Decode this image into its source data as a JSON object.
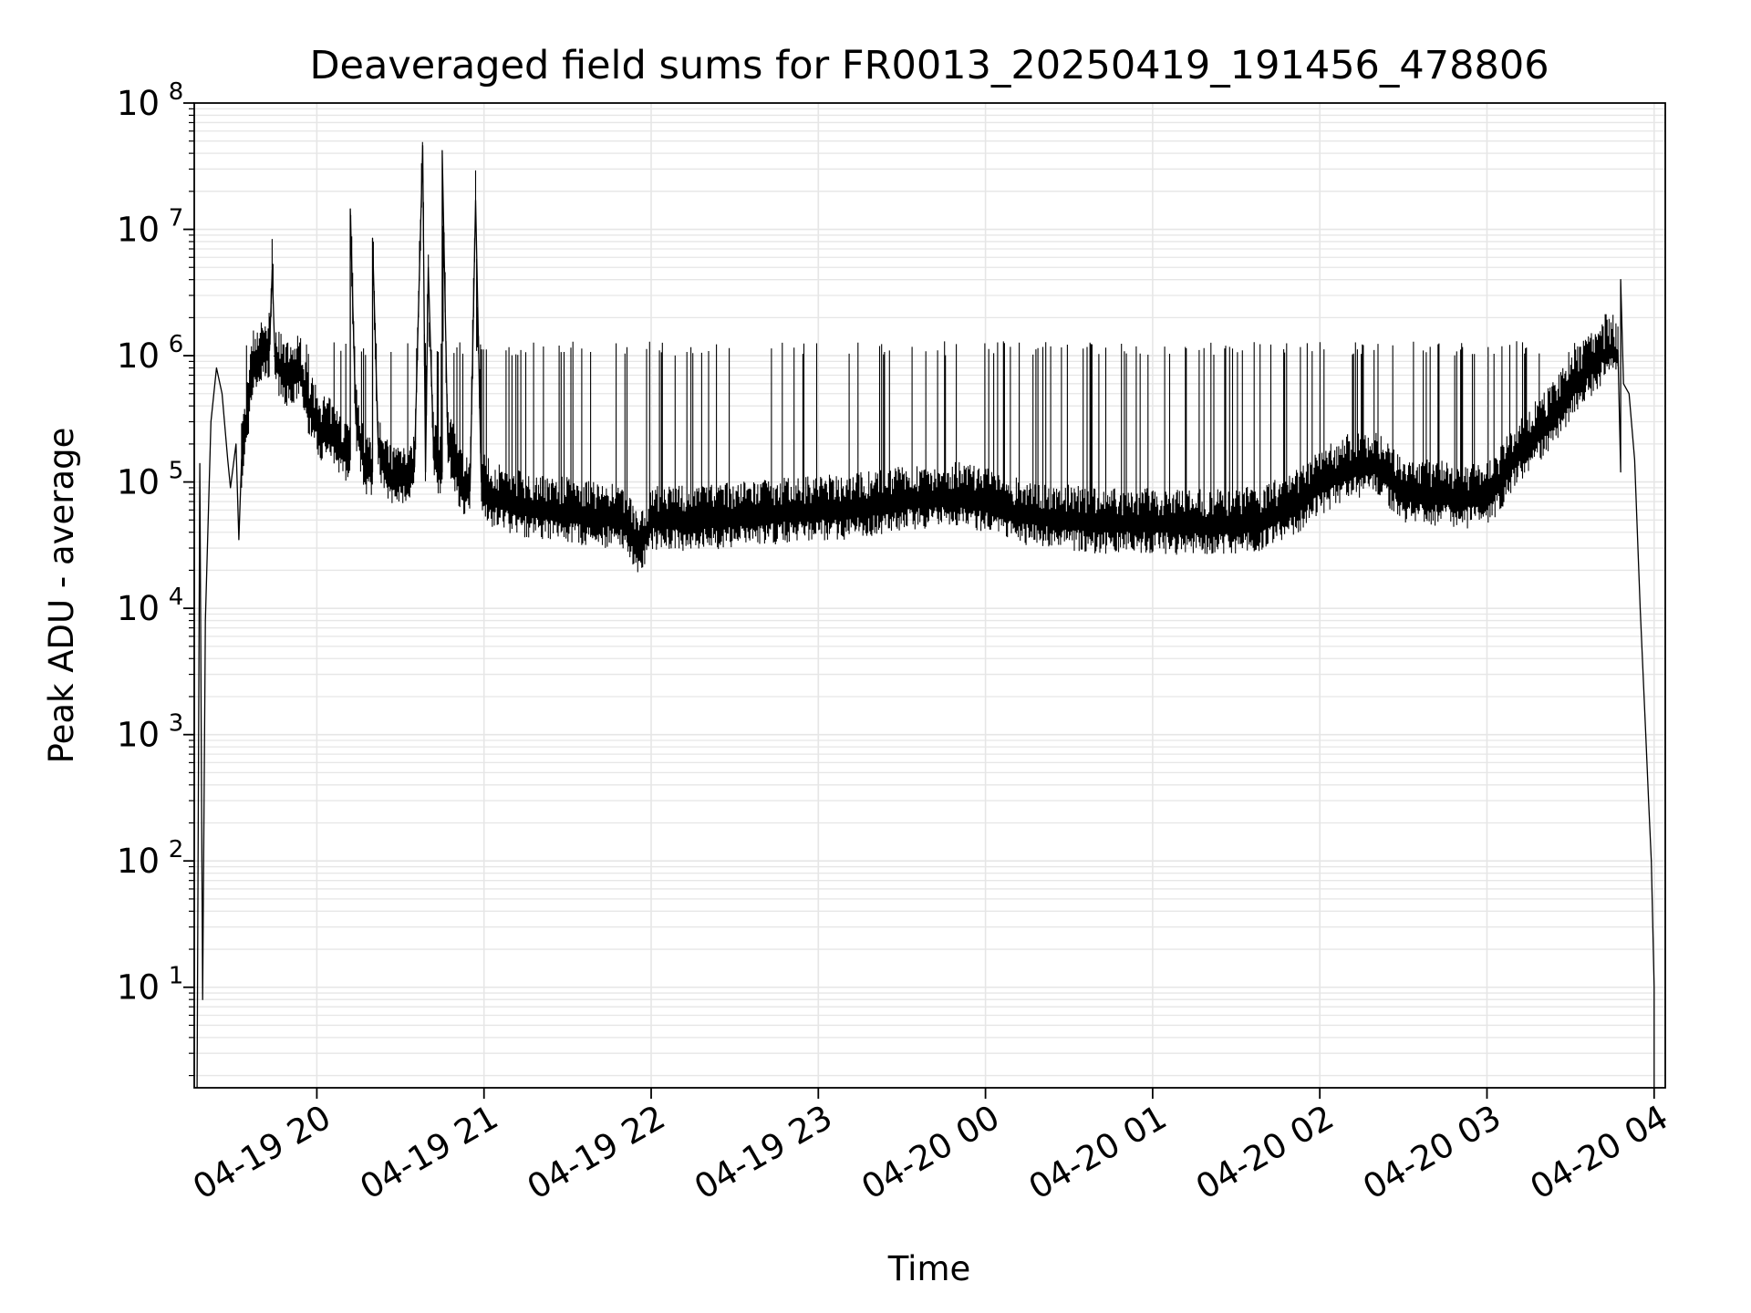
{
  "chart_data": {
    "type": "line",
    "title": "Deaveraged field sums for FR0013_20250419_191456_478806",
    "xlabel": "Time",
    "ylabel": "Peak ADU - average",
    "xscale": "time",
    "yscale": "log",
    "xlim": [
      "2025-04-19 19:16",
      "2025-04-20 04:04"
    ],
    "ylim": [
      1.6,
      100000000
    ],
    "x_ticks": [
      {
        "t": "2025-04-19 20:00",
        "label": "04-19 20"
      },
      {
        "t": "2025-04-19 21:00",
        "label": "04-19 21"
      },
      {
        "t": "2025-04-19 22:00",
        "label": "04-19 22"
      },
      {
        "t": "2025-04-19 23:00",
        "label": "04-19 23"
      },
      {
        "t": "2025-04-20 00:00",
        "label": "04-20 00"
      },
      {
        "t": "2025-04-20 01:00",
        "label": "04-20 01"
      },
      {
        "t": "2025-04-20 02:00",
        "label": "04-20 02"
      },
      {
        "t": "2025-04-20 03:00",
        "label": "04-20 03"
      },
      {
        "t": "2025-04-20 04:00",
        "label": "04-20 04"
      }
    ],
    "y_ticks": [
      {
        "v": 10,
        "base": "10",
        "exp": "1"
      },
      {
        "v": 100,
        "base": "10",
        "exp": "2"
      },
      {
        "v": 1000,
        "base": "10",
        "exp": "3"
      },
      {
        "v": 10000,
        "base": "10",
        "exp": "4"
      },
      {
        "v": 100000,
        "base": "10",
        "exp": "5"
      },
      {
        "v": 1000000,
        "base": "10",
        "exp": "6"
      },
      {
        "v": 10000000,
        "base": "10",
        "exp": "7"
      },
      {
        "v": 100000000,
        "base": "10",
        "exp": "8"
      }
    ],
    "grid": true,
    "line_color": "#000000",
    "grid_color": "#e6e6e6",
    "series": [
      {
        "points": [
          [
            "2025-04-19 19:17",
            1.6
          ],
          [
            "2025-04-19 19:18",
            140000
          ],
          [
            "2025-04-19 19:19",
            8
          ],
          [
            "2025-04-19 19:20",
            8000
          ],
          [
            "2025-04-19 19:22",
            300000
          ],
          [
            "2025-04-19 19:24",
            800000
          ],
          [
            "2025-04-19 19:26",
            500000
          ],
          [
            "2025-04-19 19:28",
            150000
          ],
          [
            "2025-04-19 19:29",
            90000
          ],
          [
            "2025-04-19 19:31",
            200000
          ],
          [
            "2025-04-19 19:32",
            35000
          ],
          [
            "2025-04-19 19:33",
            150000
          ],
          [
            "2025-04-19 19:35",
            300000
          ],
          [
            "2025-04-19 19:37",
            800000
          ],
          [
            "2025-04-19 19:40",
            950000
          ],
          [
            "2025-04-19 19:43",
            1100000
          ],
          [
            "2025-04-19 19:44",
            4800000
          ],
          [
            "2025-04-19 19:45",
            900000
          ],
          [
            "2025-04-19 19:48",
            700000
          ],
          [
            "2025-04-19 19:51",
            600000
          ],
          [
            "2025-04-19 19:54",
            800000
          ],
          [
            "2025-04-19 19:56",
            450000
          ],
          [
            "2025-04-19 19:58",
            350000
          ],
          [
            "2025-04-19 20:01",
            250000
          ],
          [
            "2025-04-19 20:05",
            230000
          ],
          [
            "2025-04-19 20:08",
            180000
          ],
          [
            "2025-04-19 20:12",
            150000
          ],
          [
            "2025-04-19 20:12",
            14500000
          ],
          [
            "2025-04-19 20:14",
            300000
          ],
          [
            "2025-04-19 20:17",
            130000
          ],
          [
            "2025-04-19 20:20",
            120000
          ],
          [
            "2025-04-19 20:20",
            8500000
          ],
          [
            "2025-04-19 20:22",
            200000
          ],
          [
            "2025-04-19 20:25",
            110000
          ],
          [
            "2025-04-19 20:28",
            100000
          ],
          [
            "2025-04-19 20:32",
            110000
          ],
          [
            "2025-04-19 20:35",
            120000
          ],
          [
            "2025-04-19 20:38",
            46000000
          ],
          [
            "2025-04-19 20:39",
            120000
          ],
          [
            "2025-04-19 20:40",
            5000000
          ],
          [
            "2025-04-19 20:42",
            150000
          ],
          [
            "2025-04-19 20:45",
            120000
          ],
          [
            "2025-04-19 20:45",
            42000000
          ],
          [
            "2025-04-19 20:47",
            200000
          ],
          [
            "2025-04-19 20:50",
            120000
          ],
          [
            "2025-04-19 20:52",
            90000
          ],
          [
            "2025-04-19 20:55",
            85000
          ],
          [
            "2025-04-19 20:57",
            17000000
          ],
          [
            "2025-04-19 20:59",
            100000
          ],
          [
            "2025-04-19 21:02",
            75000
          ],
          [
            "2025-04-19 21:05",
            70000
          ],
          [
            "2025-04-19 21:10",
            65000
          ],
          [
            "2025-04-19 21:15",
            60000
          ],
          [
            "2025-04-19 21:20",
            58000
          ],
          [
            "2025-04-19 21:25",
            56000
          ],
          [
            "2025-04-19 21:30",
            55000
          ],
          [
            "2025-04-19 21:35",
            52000
          ],
          [
            "2025-04-19 21:40",
            50000
          ],
          [
            "2025-04-19 21:45",
            50000
          ],
          [
            "2025-04-19 21:50",
            48000
          ],
          [
            "2025-04-19 21:56",
            28000
          ],
          [
            "2025-04-19 22:00",
            48000
          ],
          [
            "2025-04-19 22:10",
            47000
          ],
          [
            "2025-04-19 22:20",
            48000
          ],
          [
            "2025-04-19 22:30",
            50000
          ],
          [
            "2025-04-19 22:40",
            52000
          ],
          [
            "2025-04-19 22:50",
            55000
          ],
          [
            "2025-04-19 23:00",
            57000
          ],
          [
            "2025-04-19 23:10",
            58000
          ],
          [
            "2025-04-19 23:20",
            62000
          ],
          [
            "2025-04-19 23:30",
            68000
          ],
          [
            "2025-04-19 23:40",
            70000
          ],
          [
            "2025-04-19 23:50",
            72000
          ],
          [
            "2025-04-19 23:55",
            70000
          ],
          [
            "2025-04-20 00:00",
            65000
          ],
          [
            "2025-04-20 00:10",
            55000
          ],
          [
            "2025-04-20 00:20",
            50000
          ],
          [
            "2025-04-20 00:30",
            48000
          ],
          [
            "2025-04-20 00:40",
            45000
          ],
          [
            "2025-04-20 00:50",
            45000
          ],
          [
            "2025-04-20 01:00",
            45000
          ],
          [
            "2025-04-20 01:10",
            44000
          ],
          [
            "2025-04-20 01:20",
            44000
          ],
          [
            "2025-04-20 01:30",
            45000
          ],
          [
            "2025-04-20 01:40",
            48000
          ],
          [
            "2025-04-20 01:50",
            60000
          ],
          [
            "2025-04-20 02:00",
            90000
          ],
          [
            "2025-04-20 02:10",
            120000
          ],
          [
            "2025-04-20 02:20",
            130000
          ],
          [
            "2025-04-20 02:30",
            80000
          ],
          [
            "2025-04-20 02:40",
            75000
          ],
          [
            "2025-04-20 02:50",
            72000
          ],
          [
            "2025-04-20 03:00",
            70000
          ],
          [
            "2025-04-20 03:05",
            100000
          ],
          [
            "2025-04-20 03:10",
            150000
          ],
          [
            "2025-04-20 03:15",
            200000
          ],
          [
            "2025-04-20 03:20",
            250000
          ],
          [
            "2025-04-20 03:25",
            350000
          ],
          [
            "2025-04-20 03:30",
            500000
          ],
          [
            "2025-04-20 03:35",
            700000
          ],
          [
            "2025-04-20 03:40",
            900000
          ],
          [
            "2025-04-20 03:44",
            1200000
          ],
          [
            "2025-04-20 03:47",
            1100000
          ],
          [
            "2025-04-20 03:48",
            120000
          ],
          [
            "2025-04-20 03:48",
            4000000
          ],
          [
            "2025-04-20 03:49",
            600000
          ],
          [
            "2025-04-20 03:51",
            500000
          ],
          [
            "2025-04-20 03:53",
            150000
          ],
          [
            "2025-04-20 03:55",
            10000
          ],
          [
            "2025-04-20 03:57",
            1000
          ],
          [
            "2025-04-20 03:58",
            300
          ],
          [
            "2025-04-20 03:59",
            100
          ],
          [
            "2025-04-20 04:00",
            10
          ],
          [
            "2025-04-20 04:00",
            1.6
          ]
        ]
      }
    ]
  }
}
